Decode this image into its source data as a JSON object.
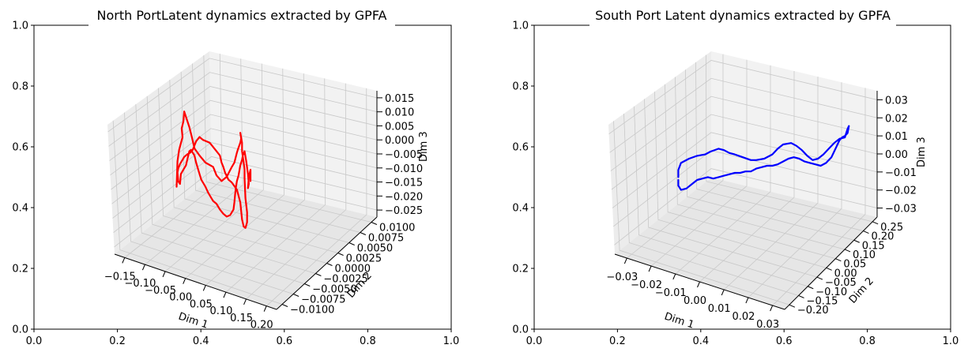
{
  "chart_data": [
    {
      "type": "line3d",
      "title": "North PortLatent dynamics extracted by GPFA",
      "outer_axes": {
        "xlim": [
          0,
          1
        ],
        "ylim": [
          0,
          1
        ],
        "xticks": [
          "0.0",
          "0.2",
          "0.4",
          "0.6",
          "0.8",
          "1.0"
        ],
        "yticks": [
          "0.0",
          "0.2",
          "0.4",
          "0.6",
          "0.8",
          "1.0"
        ]
      },
      "xlabel": "Dim 1",
      "ylabel": "Dim 2",
      "zlabel": "Dim 3",
      "xticks": [
        "−0.15",
        "−0.10",
        "−0.05",
        "0.00",
        "0.05",
        "0.10",
        "0.15",
        "0.20"
      ],
      "yticks": [
        "−0.0100",
        "−0.0075",
        "−0.0050",
        "−0.0025",
        "0.0000",
        "0.0025",
        "0.0050",
        "0.0075",
        "0.0100"
      ],
      "zticks": [
        "−0.025",
        "−0.020",
        "−0.015",
        "−0.010",
        "−0.005",
        "0.000",
        "0.005",
        "0.010",
        "0.015"
      ],
      "grid": true,
      "series": [
        {
          "color": "#ff0000",
          "trace": [
            [
              0.365,
              0.38
            ],
            [
              0.37,
              0.56
            ],
            [
              0.38,
              0.64
            ],
            [
              0.4,
              0.73
            ],
            [
              0.395,
              0.79
            ],
            [
              0.405,
              0.84
            ],
            [
              0.41,
              0.91
            ],
            [
              0.44,
              0.8
            ],
            [
              0.455,
              0.73
            ],
            [
              0.47,
              0.65
            ],
            [
              0.5,
              0.6
            ],
            [
              0.535,
              0.55
            ],
            [
              0.58,
              0.52
            ],
            [
              0.6,
              0.46
            ],
            [
              0.63,
              0.42
            ],
            [
              0.66,
              0.45
            ],
            [
              0.69,
              0.52
            ],
            [
              0.705,
              0.55
            ],
            [
              0.72,
              0.62
            ],
            [
              0.725,
              0.64
            ],
            [
              0.74,
              0.69
            ],
            [
              0.745,
              0.72
            ],
            [
              0.74,
              0.76
            ],
            [
              0.75,
              0.69
            ],
            [
              0.75,
              0.63
            ],
            [
              0.76,
              0.55
            ],
            [
              0.765,
              0.5
            ],
            [
              0.765,
              0.44
            ],
            [
              0.77,
              0.3
            ],
            [
              0.78,
              0.2
            ],
            [
              0.78,
              0.13
            ],
            [
              0.77,
              0.09
            ],
            [
              0.76,
              0.1
            ],
            [
              0.75,
              0.15
            ],
            [
              0.74,
              0.27
            ],
            [
              0.72,
              0.36
            ],
            [
              0.69,
              0.41
            ],
            [
              0.67,
              0.43
            ],
            [
              0.65,
              0.48
            ],
            [
              0.64,
              0.52
            ],
            [
              0.63,
              0.55
            ],
            [
              0.62,
              0.6
            ],
            [
              0.6,
              0.63
            ],
            [
              0.58,
              0.66
            ],
            [
              0.56,
              0.69
            ],
            [
              0.54,
              0.7
            ],
            [
              0.52,
              0.71
            ],
            [
              0.5,
              0.73
            ],
            [
              0.48,
              0.7
            ],
            [
              0.46,
              0.64
            ],
            [
              0.445,
              0.62
            ],
            [
              0.43,
              0.61
            ],
            [
              0.41,
              0.59
            ],
            [
              0.4,
              0.57
            ],
            [
              0.385,
              0.54
            ],
            [
              0.375,
              0.51
            ],
            [
              0.37,
              0.48
            ],
            [
              0.375,
              0.42
            ],
            [
              0.385,
              0.4
            ],
            [
              0.39,
              0.47
            ],
            [
              0.4,
              0.49
            ],
            [
              0.41,
              0.51
            ],
            [
              0.42,
              0.53
            ],
            [
              0.43,
              0.58
            ],
            [
              0.44,
              0.63
            ],
            [
              0.45,
              0.64
            ],
            [
              0.46,
              0.62
            ],
            [
              0.47,
              0.6
            ],
            [
              0.48,
              0.55
            ],
            [
              0.5,
              0.47
            ],
            [
              0.51,
              0.43
            ],
            [
              0.525,
              0.4
            ],
            [
              0.535,
              0.38
            ],
            [
              0.55,
              0.34
            ],
            [
              0.57,
              0.3
            ],
            [
              0.58,
              0.28
            ],
            [
              0.6,
              0.26
            ],
            [
              0.62,
              0.22
            ],
            [
              0.64,
              0.19
            ],
            [
              0.66,
              0.17
            ],
            [
              0.68,
              0.18
            ],
            [
              0.7,
              0.22
            ],
            [
              0.705,
              0.27
            ],
            [
              0.71,
              0.33
            ],
            [
              0.715,
              0.38
            ],
            [
              0.72,
              0.42
            ],
            [
              0.73,
              0.46
            ],
            [
              0.74,
              0.53
            ],
            [
              0.75,
              0.57
            ],
            [
              0.755,
              0.6
            ],
            [
              0.765,
              0.63
            ],
            [
              0.775,
              0.56
            ],
            [
              0.785,
              0.47
            ],
            [
              0.79,
              0.4
            ],
            [
              0.785,
              0.37
            ],
            [
              0.79,
              0.45
            ],
            [
              0.8,
              0.5
            ],
            [
              0.8,
              0.45
            ],
            [
              0.8,
              0.42
            ]
          ]
        }
      ]
    },
    {
      "type": "line3d",
      "title": "South Port Latent dynamics extracted by GPFA",
      "outer_axes": {
        "xlim": [
          0,
          1
        ],
        "ylim": [
          0,
          1
        ],
        "xticks": [
          "0.0",
          "0.2",
          "0.4",
          "0.6",
          "0.8",
          "1.0"
        ],
        "yticks": [
          "0.0",
          "0.2",
          "0.4",
          "0.6",
          "0.8",
          "1.0"
        ]
      },
      "xlabel": "Dim 1",
      "ylabel": "Dim 2",
      "zlabel": "Dim 3",
      "xticks": [
        "−0.03",
        "−0.02",
        "−0.01",
        "0.00",
        "0.01",
        "0.02",
        "0.03"
      ],
      "yticks": [
        "−0.20",
        "−0.15",
        "−0.10",
        "−0.05",
        "0.00",
        "0.05",
        "0.10",
        "0.15",
        "0.20",
        "0.25"
      ],
      "zticks": [
        "−0.03",
        "−0.02",
        "−0.01",
        "0.00",
        "0.01",
        "0.02",
        "0.03"
      ],
      "grid": true,
      "series": [
        {
          "color": "#0000ff",
          "trace": [
            [
              0.26,
              0.42
            ],
            [
              0.26,
              0.47
            ],
            [
              0.27,
              0.52
            ],
            [
              0.3,
              0.55
            ],
            [
              0.33,
              0.57
            ],
            [
              0.36,
              0.58
            ],
            [
              0.38,
              0.6
            ],
            [
              0.41,
              0.62
            ],
            [
              0.43,
              0.61
            ],
            [
              0.45,
              0.59
            ],
            [
              0.47,
              0.58
            ],
            [
              0.5,
              0.56
            ],
            [
              0.53,
              0.54
            ],
            [
              0.55,
              0.54
            ],
            [
              0.58,
              0.55
            ],
            [
              0.61,
              0.58
            ],
            [
              0.63,
              0.62
            ],
            [
              0.65,
              0.65
            ],
            [
              0.68,
              0.66
            ],
            [
              0.7,
              0.64
            ],
            [
              0.72,
              0.61
            ],
            [
              0.74,
              0.57
            ],
            [
              0.76,
              0.54
            ],
            [
              0.78,
              0.55
            ],
            [
              0.8,
              0.58
            ],
            [
              0.82,
              0.62
            ],
            [
              0.84,
              0.66
            ],
            [
              0.86,
              0.69
            ],
            [
              0.88,
              0.7
            ],
            [
              0.89,
              0.76
            ],
            [
              0.895,
              0.78
            ],
            [
              0.89,
              0.73
            ],
            [
              0.88,
              0.71
            ],
            [
              0.87,
              0.7
            ],
            [
              0.86,
              0.68
            ],
            [
              0.85,
              0.64
            ],
            [
              0.84,
              0.6
            ],
            [
              0.83,
              0.56
            ],
            [
              0.82,
              0.54
            ],
            [
              0.81,
              0.52
            ],
            [
              0.79,
              0.5
            ],
            [
              0.77,
              0.51
            ],
            [
              0.75,
              0.52
            ],
            [
              0.73,
              0.53
            ],
            [
              0.71,
              0.55
            ],
            [
              0.69,
              0.56
            ],
            [
              0.67,
              0.55
            ],
            [
              0.65,
              0.53
            ],
            [
              0.63,
              0.51
            ],
            [
              0.61,
              0.5
            ],
            [
              0.59,
              0.5
            ],
            [
              0.57,
              0.49
            ],
            [
              0.55,
              0.48
            ],
            [
              0.53,
              0.46
            ],
            [
              0.51,
              0.46
            ],
            [
              0.49,
              0.45
            ],
            [
              0.47,
              0.45
            ],
            [
              0.45,
              0.44
            ],
            [
              0.43,
              0.43
            ],
            [
              0.41,
              0.42
            ],
            [
              0.39,
              0.41
            ],
            [
              0.37,
              0.42
            ],
            [
              0.35,
              0.41
            ],
            [
              0.33,
              0.4
            ],
            [
              0.31,
              0.37
            ],
            [
              0.29,
              0.34
            ],
            [
              0.27,
              0.33
            ],
            [
              0.26,
              0.36
            ],
            [
              0.26,
              0.4
            ]
          ]
        }
      ]
    }
  ]
}
